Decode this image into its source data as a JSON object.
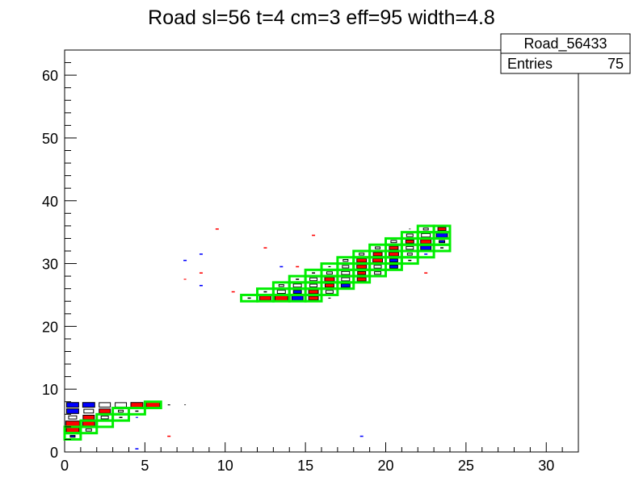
{
  "chart_data": {
    "type": "heatmap",
    "title": "Road sl=56 t=4 cm=3 eff=95 width=4.8",
    "xlim": [
      0,
      32
    ],
    "ylim": [
      0,
      64
    ],
    "x_ticks": [
      "0",
      "5",
      "10",
      "15",
      "20",
      "25",
      "30"
    ],
    "y_ticks": [
      "0",
      "10",
      "20",
      "30",
      "40",
      "50",
      "60"
    ],
    "grid": false,
    "stats_box": {
      "name": "Road_56433",
      "entries_label": "Entries",
      "entries_value": "75"
    },
    "colors": {
      "road_outline": "#00ee00",
      "red_cell": "#ff0000",
      "blue_cell": "#0000ff",
      "black_cell": "#000000"
    },
    "road_cells": [
      [
        0.5,
        2.5
      ],
      [
        1.5,
        3.5
      ],
      [
        0.5,
        3.5
      ],
      [
        2.5,
        4.5
      ],
      [
        1.5,
        4.5
      ],
      [
        3.5,
        5.5
      ],
      [
        2.5,
        5.5
      ],
      [
        4.5,
        6.5
      ],
      [
        3.5,
        6.5
      ],
      [
        5.5,
        7.5
      ],
      [
        11.5,
        24.5
      ],
      [
        12.5,
        24.5
      ],
      [
        13.5,
        24.5
      ],
      [
        14.5,
        24.5
      ],
      [
        15.5,
        24.5
      ],
      [
        12.5,
        25.5
      ],
      [
        13.5,
        25.5
      ],
      [
        14.5,
        25.5
      ],
      [
        15.5,
        25.5
      ],
      [
        16.5,
        25.5
      ],
      [
        13.5,
        26.5
      ],
      [
        14.5,
        26.5
      ],
      [
        15.5,
        26.5
      ],
      [
        16.5,
        26.5
      ],
      [
        17.5,
        26.5
      ],
      [
        14.5,
        27.5
      ],
      [
        15.5,
        27.5
      ],
      [
        16.5,
        27.5
      ],
      [
        17.5,
        27.5
      ],
      [
        18.5,
        27.5
      ],
      [
        15.5,
        28.5
      ],
      [
        16.5,
        28.5
      ],
      [
        17.5,
        28.5
      ],
      [
        18.5,
        28.5
      ],
      [
        19.5,
        28.5
      ],
      [
        16.5,
        29.5
      ],
      [
        17.5,
        29.5
      ],
      [
        18.5,
        29.5
      ],
      [
        19.5,
        29.5
      ],
      [
        20.5,
        29.5
      ],
      [
        17.5,
        30.5
      ],
      [
        18.5,
        30.5
      ],
      [
        19.5,
        30.5
      ],
      [
        20.5,
        30.5
      ],
      [
        21.5,
        30.5
      ],
      [
        18.5,
        31.5
      ],
      [
        19.5,
        31.5
      ],
      [
        20.5,
        31.5
      ],
      [
        21.5,
        31.5
      ],
      [
        22.5,
        31.5
      ],
      [
        19.5,
        32.5
      ],
      [
        20.5,
        32.5
      ],
      [
        21.5,
        32.5
      ],
      [
        22.5,
        32.5
      ],
      [
        23.5,
        32.5
      ],
      [
        20.5,
        33.5
      ],
      [
        21.5,
        33.5
      ],
      [
        22.5,
        33.5
      ],
      [
        23.5,
        33.5
      ],
      [
        21.5,
        34.5
      ],
      [
        22.5,
        34.5
      ],
      [
        23.5,
        34.5
      ],
      [
        22.5,
        35.5
      ],
      [
        23.5,
        35.5
      ]
    ],
    "hits": [
      {
        "x": 0.5,
        "y": 7.5,
        "c": "blue",
        "s": 0.75
      },
      {
        "x": 1.5,
        "y": 7.5,
        "c": "blue",
        "s": 0.75
      },
      {
        "x": 2.5,
        "y": 7.5,
        "c": "black",
        "s": 0.7
      },
      {
        "x": 3.5,
        "y": 7.5,
        "c": "black",
        "s": 0.7
      },
      {
        "x": 4.5,
        "y": 7.5,
        "c": "red",
        "s": 0.75
      },
      {
        "x": 5.5,
        "y": 7.5,
        "c": "red",
        "s": 0.85
      },
      {
        "x": 6.5,
        "y": 7.5,
        "c": "black",
        "s": 0.15
      },
      {
        "x": 7.5,
        "y": 7.5,
        "c": "black",
        "s": 0.1
      },
      {
        "x": 0.5,
        "y": 6.5,
        "c": "blue",
        "s": 0.75
      },
      {
        "x": 1.5,
        "y": 6.5,
        "c": "black",
        "s": 0.6
      },
      {
        "x": 2.5,
        "y": 6.5,
        "c": "red",
        "s": 0.7
      },
      {
        "x": 3.5,
        "y": 6.5,
        "c": "black",
        "s": 0.3
      },
      {
        "x": 4.5,
        "y": 6.5,
        "c": "black",
        "s": 0.2
      },
      {
        "x": 0.5,
        "y": 5.5,
        "c": "black",
        "s": 0.5
      },
      {
        "x": 1.5,
        "y": 5.5,
        "c": "red",
        "s": 0.7
      },
      {
        "x": 2.5,
        "y": 5.5,
        "c": "black",
        "s": 0.45
      },
      {
        "x": 3.5,
        "y": 5.5,
        "c": "black",
        "s": 0.2
      },
      {
        "x": 4.5,
        "y": 5.5,
        "c": "blue",
        "s": 0.15
      },
      {
        "x": 0.5,
        "y": 4.5,
        "c": "red",
        "s": 0.85
      },
      {
        "x": 1.5,
        "y": 4.5,
        "c": "red",
        "s": 0.75
      },
      {
        "x": 0.5,
        "y": 3.5,
        "c": "red",
        "s": 0.8
      },
      {
        "x": 1.5,
        "y": 3.5,
        "c": "black",
        "s": 0.35
      },
      {
        "x": 0.5,
        "y": 2.5,
        "c": "blue",
        "s": 0.3
      },
      {
        "x": 6.5,
        "y": 2.5,
        "c": "red",
        "s": 0.2
      },
      {
        "x": 4.5,
        "y": 0.5,
        "c": "blue",
        "s": 0.2
      },
      {
        "x": 18.5,
        "y": 2.5,
        "c": "blue",
        "s": 0.2
      },
      {
        "x": 7.5,
        "y": 27.5,
        "c": "red",
        "s": 0.15
      },
      {
        "x": 7.5,
        "y": 30.5,
        "c": "blue",
        "s": 0.2
      },
      {
        "x": 8.5,
        "y": 31.5,
        "c": "blue",
        "s": 0.2
      },
      {
        "x": 8.5,
        "y": 28.5,
        "c": "red",
        "s": 0.2
      },
      {
        "x": 8.5,
        "y": 26.5,
        "c": "blue",
        "s": 0.2
      },
      {
        "x": 9.5,
        "y": 35.5,
        "c": "red",
        "s": 0.2
      },
      {
        "x": 10.5,
        "y": 25.5,
        "c": "red",
        "s": 0.2
      },
      {
        "x": 12.5,
        "y": 32.5,
        "c": "red",
        "s": 0.2
      },
      {
        "x": 13.5,
        "y": 29.5,
        "c": "blue",
        "s": 0.2
      },
      {
        "x": 14.5,
        "y": 29.5,
        "c": "red",
        "s": 0.2
      },
      {
        "x": 15.5,
        "y": 34.5,
        "c": "red",
        "s": 0.2
      },
      {
        "x": 22.5,
        "y": 28.5,
        "c": "red",
        "s": 0.2
      },
      {
        "x": 11.5,
        "y": 24.5,
        "c": "black",
        "s": 0.2
      },
      {
        "x": 12.5,
        "y": 24.5,
        "c": "red",
        "s": 0.7
      },
      {
        "x": 13.5,
        "y": 24.5,
        "c": "red",
        "s": 0.8
      },
      {
        "x": 14.5,
        "y": 24.5,
        "c": "blue",
        "s": 0.7
      },
      {
        "x": 15.5,
        "y": 24.5,
        "c": "red",
        "s": 0.6
      },
      {
        "x": 16.5,
        "y": 24.5,
        "c": "black",
        "s": 0.15
      },
      {
        "x": 12.5,
        "y": 25.5,
        "c": "black",
        "s": 0.2
      },
      {
        "x": 13.5,
        "y": 25.5,
        "c": "black",
        "s": 0.5
      },
      {
        "x": 14.5,
        "y": 25.5,
        "c": "blue",
        "s": 0.5
      },
      {
        "x": 15.5,
        "y": 25.5,
        "c": "red",
        "s": 0.6
      },
      {
        "x": 16.5,
        "y": 25.5,
        "c": "black",
        "s": 0.45
      },
      {
        "x": 13.5,
        "y": 26.5,
        "c": "black",
        "s": 0.3
      },
      {
        "x": 14.5,
        "y": 26.5,
        "c": "black",
        "s": 0.5
      },
      {
        "x": 15.5,
        "y": 26.5,
        "c": "black",
        "s": 0.45
      },
      {
        "x": 16.5,
        "y": 26.5,
        "c": "red",
        "s": 0.55
      },
      {
        "x": 17.5,
        "y": 26.5,
        "c": "blue",
        "s": 0.55
      },
      {
        "x": 14.5,
        "y": 27.5,
        "c": "black",
        "s": 0.2
      },
      {
        "x": 15.5,
        "y": 27.5,
        "c": "black",
        "s": 0.45
      },
      {
        "x": 16.5,
        "y": 27.5,
        "c": "red",
        "s": 0.6
      },
      {
        "x": 17.5,
        "y": 27.5,
        "c": "black",
        "s": 0.5
      },
      {
        "x": 18.5,
        "y": 27.5,
        "c": "red",
        "s": 0.55
      },
      {
        "x": 15.5,
        "y": 28.5,
        "c": "black",
        "s": 0.2
      },
      {
        "x": 16.5,
        "y": 28.5,
        "c": "black",
        "s": 0.35
      },
      {
        "x": 17.5,
        "y": 28.5,
        "c": "black",
        "s": 0.5
      },
      {
        "x": 18.5,
        "y": 28.5,
        "c": "red",
        "s": 0.5
      },
      {
        "x": 19.5,
        "y": 28.5,
        "c": "black",
        "s": 0.4
      },
      {
        "x": 16.5,
        "y": 29.5,
        "c": "black",
        "s": 0.15
      },
      {
        "x": 17.5,
        "y": 29.5,
        "c": "black",
        "s": 0.4
      },
      {
        "x": 18.5,
        "y": 29.5,
        "c": "red",
        "s": 0.6
      },
      {
        "x": 19.5,
        "y": 29.5,
        "c": "black",
        "s": 0.45
      },
      {
        "x": 20.5,
        "y": 29.5,
        "c": "blue",
        "s": 0.5
      },
      {
        "x": 17.5,
        "y": 30.5,
        "c": "black",
        "s": 0.3
      },
      {
        "x": 18.5,
        "y": 30.5,
        "c": "red",
        "s": 0.6
      },
      {
        "x": 19.5,
        "y": 30.5,
        "c": "red",
        "s": 0.6
      },
      {
        "x": 20.5,
        "y": 30.5,
        "c": "blue",
        "s": 0.5
      },
      {
        "x": 21.5,
        "y": 30.5,
        "c": "black",
        "s": 0.2
      },
      {
        "x": 18.5,
        "y": 31.5,
        "c": "black",
        "s": 0.3
      },
      {
        "x": 19.5,
        "y": 31.5,
        "c": "red",
        "s": 0.55
      },
      {
        "x": 20.5,
        "y": 31.5,
        "c": "red",
        "s": 0.6
      },
      {
        "x": 21.5,
        "y": 31.5,
        "c": "black",
        "s": 0.3
      },
      {
        "x": 22.5,
        "y": 31.5,
        "c": "blue",
        "s": 0.2
      },
      {
        "x": 19.5,
        "y": 32.5,
        "c": "black",
        "s": 0.3
      },
      {
        "x": 20.5,
        "y": 32.5,
        "c": "red",
        "s": 0.55
      },
      {
        "x": 21.5,
        "y": 32.5,
        "c": "black",
        "s": 0.45
      },
      {
        "x": 22.5,
        "y": 32.5,
        "c": "blue",
        "s": 0.65
      },
      {
        "x": 23.5,
        "y": 32.5,
        "c": "black",
        "s": 0.2
      },
      {
        "x": 20.5,
        "y": 33.5,
        "c": "black",
        "s": 0.35
      },
      {
        "x": 21.5,
        "y": 33.5,
        "c": "red",
        "s": 0.5
      },
      {
        "x": 22.5,
        "y": 33.5,
        "c": "red",
        "s": 0.65
      },
      {
        "x": 23.5,
        "y": 33.5,
        "c": "blue",
        "s": 0.35
      },
      {
        "x": 21.5,
        "y": 34.5,
        "c": "black",
        "s": 0.4
      },
      {
        "x": 22.5,
        "y": 34.5,
        "c": "black",
        "s": 0.55
      },
      {
        "x": 23.5,
        "y": 34.5,
        "c": "blue",
        "s": 0.7
      },
      {
        "x": 21.5,
        "y": 35.5,
        "c": "black",
        "s": 0.1
      },
      {
        "x": 22.5,
        "y": 35.5,
        "c": "black",
        "s": 0.3
      },
      {
        "x": 23.5,
        "y": 35.5,
        "c": "red",
        "s": 0.5
      }
    ]
  }
}
